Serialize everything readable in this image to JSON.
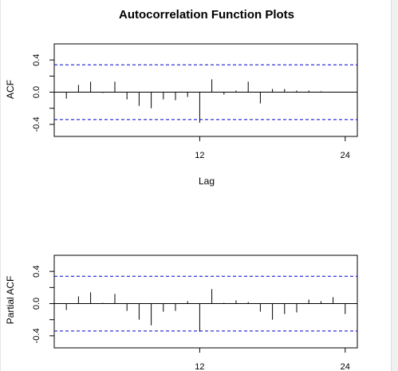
{
  "chart_data": [
    {
      "type": "bar",
      "title": "Autocorrelation Function Plots",
      "xlabel": "Lag",
      "ylabel": "ACF",
      "xlim": [
        0,
        25
      ],
      "ylim": [
        -0.55,
        0.6
      ],
      "xticks": [
        {
          "value": 12,
          "label": "12"
        },
        {
          "value": 24,
          "label": "24"
        }
      ],
      "yticks": [
        {
          "value": 0.4,
          "label": "0.4"
        },
        {
          "value": 0.0,
          "label": "0.0"
        },
        {
          "value": -0.4,
          "label": "-0.4"
        }
      ],
      "confidence_limits": [
        0.34,
        -0.34
      ],
      "zero_line": true,
      "grid": false,
      "x": [
        1,
        2,
        3,
        4,
        5,
        6,
        7,
        8,
        9,
        10,
        11,
        12,
        13,
        14,
        15,
        16,
        17,
        18,
        19,
        20,
        21,
        22,
        23,
        24
      ],
      "values": [
        -0.08,
        0.09,
        0.13,
        -0.01,
        0.13,
        -0.09,
        -0.17,
        -0.2,
        -0.09,
        -0.1,
        -0.06,
        -0.38,
        0.16,
        -0.03,
        0.02,
        0.13,
        -0.14,
        0.04,
        0.04,
        0.02,
        0.02,
        0.01,
        0.0,
        0.0
      ],
      "colors": {
        "bars": "#000000",
        "limits": "#0000cc"
      }
    },
    {
      "type": "bar",
      "title": "",
      "xlabel": "",
      "ylabel": "Partial ACF",
      "xlim": [
        0,
        25
      ],
      "ylim": [
        -0.55,
        0.6
      ],
      "xticks": [
        {
          "value": 12,
          "label": "12"
        },
        {
          "value": 24,
          "label": "24"
        }
      ],
      "yticks": [
        {
          "value": 0.4,
          "label": "0.4"
        },
        {
          "value": 0.0,
          "label": "0.0"
        },
        {
          "value": -0.4,
          "label": "-0.4"
        }
      ],
      "confidence_limits": [
        0.34,
        -0.34
      ],
      "zero_line": true,
      "grid": false,
      "x": [
        1,
        2,
        3,
        4,
        5,
        6,
        7,
        8,
        9,
        10,
        11,
        12,
        13,
        14,
        15,
        16,
        17,
        18,
        19,
        20,
        21,
        22,
        23,
        24
      ],
      "values": [
        -0.08,
        0.09,
        0.14,
        0.01,
        0.12,
        -0.09,
        -0.2,
        -0.27,
        -0.1,
        -0.09,
        0.03,
        -0.35,
        0.18,
        0.01,
        0.04,
        0.02,
        -0.1,
        -0.2,
        -0.13,
        -0.11,
        0.05,
        0.03,
        0.08,
        -0.13
      ],
      "colors": {
        "bars": "#000000",
        "limits": "#0000cc"
      }
    }
  ]
}
